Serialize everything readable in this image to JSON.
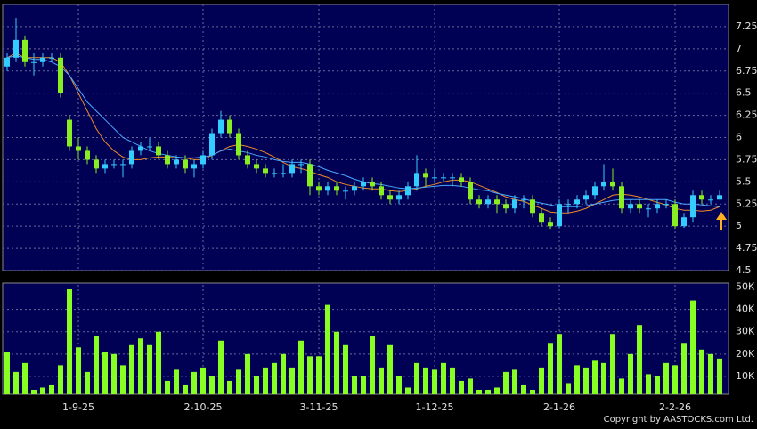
{
  "chart_data": [
    {
      "type": "candlestick",
      "grid": true,
      "up_color": "#33ccff",
      "down_color": "#88ee22",
      "categories": [
        null,
        null,
        null,
        null,
        null,
        null,
        null,
        null,
        "1-9-25",
        null,
        null,
        null,
        null,
        null,
        null,
        null,
        null,
        null,
        null,
        null,
        null,
        null,
        "2-10-25",
        null,
        null,
        null,
        null,
        null,
        null,
        null,
        null,
        null,
        null,
        null,
        null,
        "3-11-25",
        null,
        null,
        null,
        null,
        null,
        null,
        null,
        null,
        null,
        null,
        null,
        null,
        "1-12-25",
        null,
        null,
        null,
        null,
        null,
        null,
        null,
        null,
        null,
        null,
        null,
        null,
        null,
        "2-1-26",
        null,
        null,
        null,
        null,
        null,
        null,
        null,
        null,
        null,
        null,
        null,
        null,
        "2-2-26",
        null,
        null,
        null,
        null,
        null
      ],
      "open": [
        6.8,
        6.9,
        7.1,
        6.85,
        6.85,
        6.9,
        6.9,
        6.2,
        5.9,
        5.85,
        5.75,
        5.65,
        5.7,
        5.7,
        5.7,
        5.85,
        5.9,
        5.9,
        5.8,
        5.7,
        5.75,
        5.65,
        5.7,
        5.8,
        6.05,
        6.2,
        6.05,
        5.8,
        5.7,
        5.65,
        5.6,
        5.6,
        5.6,
        5.7,
        5.7,
        5.45,
        5.4,
        5.45,
        5.4,
        5.4,
        5.45,
        5.5,
        5.45,
        5.35,
        5.3,
        5.35,
        5.45,
        5.6,
        5.55,
        5.55,
        5.55,
        5.55,
        5.5,
        5.3,
        5.25,
        5.3,
        5.25,
        5.2,
        5.3,
        5.3,
        5.15,
        5.05,
        5.0,
        5.25,
        5.25,
        5.3,
        5.35,
        5.45,
        5.5,
        5.45,
        5.2,
        5.25,
        5.2,
        5.2,
        5.25,
        5.25,
        5.0,
        5.1,
        5.35,
        5.3,
        5.3
      ],
      "high": [
        6.95,
        7.35,
        7.15,
        6.95,
        6.95,
        6.95,
        6.95,
        6.25,
        6.0,
        5.9,
        5.8,
        5.75,
        5.75,
        5.75,
        5.9,
        5.95,
        6.0,
        5.95,
        5.85,
        5.8,
        5.8,
        5.75,
        5.85,
        6.1,
        6.3,
        6.25,
        6.1,
        5.85,
        5.75,
        5.7,
        5.65,
        5.7,
        5.75,
        5.75,
        5.75,
        5.5,
        5.5,
        5.5,
        5.45,
        5.5,
        5.55,
        5.55,
        5.5,
        5.4,
        5.4,
        5.5,
        5.8,
        5.65,
        5.65,
        5.6,
        5.6,
        5.6,
        5.55,
        5.35,
        5.35,
        5.35,
        5.3,
        5.35,
        5.35,
        5.35,
        5.2,
        5.1,
        5.3,
        5.3,
        5.35,
        5.4,
        5.5,
        5.7,
        5.65,
        5.5,
        5.3,
        5.3,
        5.25,
        5.3,
        5.3,
        5.3,
        5.15,
        5.4,
        5.4,
        5.35,
        5.4
      ],
      "low": [
        6.75,
        6.85,
        6.8,
        6.7,
        6.8,
        6.85,
        6.45,
        5.85,
        5.75,
        5.7,
        5.6,
        5.6,
        5.65,
        5.55,
        5.65,
        5.8,
        5.85,
        5.75,
        5.65,
        5.65,
        5.6,
        5.55,
        5.65,
        5.75,
        6.0,
        6.0,
        5.75,
        5.65,
        5.6,
        5.55,
        5.55,
        5.55,
        5.55,
        5.6,
        5.35,
        5.35,
        5.35,
        5.35,
        5.3,
        5.35,
        5.4,
        5.4,
        5.3,
        5.25,
        5.25,
        5.3,
        5.4,
        5.45,
        5.5,
        5.5,
        5.45,
        5.45,
        5.25,
        5.2,
        5.2,
        5.15,
        5.15,
        5.15,
        5.2,
        5.1,
        5.0,
        4.97,
        4.98,
        5.15,
        5.2,
        5.25,
        5.3,
        5.4,
        5.4,
        5.15,
        5.15,
        5.15,
        5.1,
        5.15,
        5.2,
        4.97,
        4.98,
        5.05,
        5.25,
        5.25,
        5.3
      ],
      "close": [
        6.9,
        7.1,
        6.85,
        6.85,
        6.9,
        6.9,
        6.5,
        5.9,
        5.85,
        5.75,
        5.65,
        5.7,
        5.7,
        5.7,
        5.85,
        5.9,
        5.9,
        5.8,
        5.7,
        5.75,
        5.65,
        5.7,
        5.8,
        6.05,
        6.2,
        6.05,
        5.8,
        5.7,
        5.65,
        5.6,
        5.6,
        5.6,
        5.7,
        5.7,
        5.45,
        5.4,
        5.45,
        5.4,
        5.4,
        5.45,
        5.5,
        5.45,
        5.35,
        5.3,
        5.35,
        5.45,
        5.6,
        5.55,
        5.55,
        5.55,
        5.55,
        5.5,
        5.3,
        5.25,
        5.3,
        5.25,
        5.2,
        5.3,
        5.3,
        5.15,
        5.05,
        5.0,
        5.25,
        5.25,
        5.3,
        5.35,
        5.45,
        5.5,
        5.45,
        5.2,
        5.25,
        5.2,
        5.2,
        5.25,
        5.25,
        5.0,
        5.1,
        5.35,
        5.3,
        5.3,
        5.35
      ],
      "series": [
        {
          "color": "#f08a24",
          "values": [
            6.9,
            6.95,
            6.9,
            6.9,
            6.9,
            6.9,
            6.85,
            6.7,
            6.5,
            6.3,
            6.1,
            5.95,
            5.85,
            5.78,
            5.75,
            5.75,
            5.77,
            5.78,
            5.78,
            5.77,
            5.77,
            5.75,
            5.75,
            5.8,
            5.85,
            5.9,
            5.92,
            5.9,
            5.87,
            5.83,
            5.78,
            5.72,
            5.67,
            5.65,
            5.62,
            5.58,
            5.55,
            5.5,
            5.47,
            5.45,
            5.43,
            5.42,
            5.42,
            5.4,
            5.39,
            5.4,
            5.42,
            5.45,
            5.47,
            5.5,
            5.52,
            5.52,
            5.5,
            5.46,
            5.42,
            5.38,
            5.33,
            5.3,
            5.28,
            5.24,
            5.2,
            5.16,
            5.15,
            5.15,
            5.17,
            5.2,
            5.25,
            5.3,
            5.35,
            5.36,
            5.35,
            5.33,
            5.3,
            5.27,
            5.24,
            5.2,
            5.18,
            5.18,
            5.17,
            5.18,
            5.22
          ]
        },
        {
          "color": "#4aa8ff",
          "values": [
            6.9,
            6.92,
            6.9,
            6.88,
            6.88,
            6.85,
            6.8,
            6.7,
            6.55,
            6.4,
            6.3,
            6.2,
            6.1,
            6.0,
            5.95,
            5.9,
            5.85,
            5.82,
            5.8,
            5.78,
            5.77,
            5.77,
            5.78,
            5.8,
            5.85,
            5.87,
            5.85,
            5.83,
            5.8,
            5.78,
            5.75,
            5.73,
            5.72,
            5.72,
            5.7,
            5.67,
            5.63,
            5.6,
            5.57,
            5.53,
            5.5,
            5.48,
            5.47,
            5.45,
            5.43,
            5.42,
            5.43,
            5.44,
            5.45,
            5.46,
            5.46,
            5.45,
            5.43,
            5.41,
            5.4,
            5.37,
            5.35,
            5.33,
            5.31,
            5.28,
            5.26,
            5.24,
            5.22,
            5.22,
            5.22,
            5.23,
            5.25,
            5.27,
            5.29,
            5.3,
            5.3,
            5.3,
            5.3,
            5.3,
            5.3,
            5.27,
            5.25,
            5.25,
            5.24,
            5.23,
            5.22
          ]
        }
      ],
      "ylim": [
        4.5,
        7.5
      ],
      "yticks": [
        4.5,
        4.75,
        5,
        5.25,
        5.5,
        5.75,
        6,
        6.25,
        6.5,
        6.75,
        7,
        7.25
      ]
    },
    {
      "type": "bar",
      "grid": true,
      "color": "#88ff22",
      "values": [
        21000,
        12000,
        16000,
        4000,
        5000,
        6000,
        15000,
        49000,
        23000,
        12000,
        28000,
        21000,
        20000,
        15000,
        24000,
        27000,
        24000,
        30000,
        8000,
        13000,
        6000,
        12000,
        14000,
        10000,
        26000,
        8000,
        13000,
        20000,
        10000,
        14000,
        16000,
        20000,
        14000,
        26000,
        19000,
        19000,
        42000,
        30000,
        24000,
        10000,
        10000,
        28000,
        14000,
        24000,
        10000,
        5000,
        16000,
        14000,
        13000,
        16000,
        14000,
        8000,
        9000,
        4000,
        4000,
        5000,
        12000,
        13000,
        6000,
        4000,
        14000,
        25000,
        29000,
        7000,
        15000,
        14000,
        17000,
        16000,
        29000,
        9000,
        20000,
        33000,
        11000,
        10000,
        16000,
        15000,
        25000,
        44000,
        22000,
        20000,
        18000
      ],
      "ylim": [
        2000,
        51000
      ],
      "yticks": [
        {
          "value": 10000,
          "label": "10K"
        },
        {
          "value": 20000,
          "label": "20K"
        },
        {
          "value": 30000,
          "label": "30K"
        },
        {
          "value": 40000,
          "label": "40K"
        },
        {
          "value": 50000,
          "label": "50K"
        }
      ]
    }
  ],
  "copyright": "Copyright by AASTOCKS.com Ltd."
}
